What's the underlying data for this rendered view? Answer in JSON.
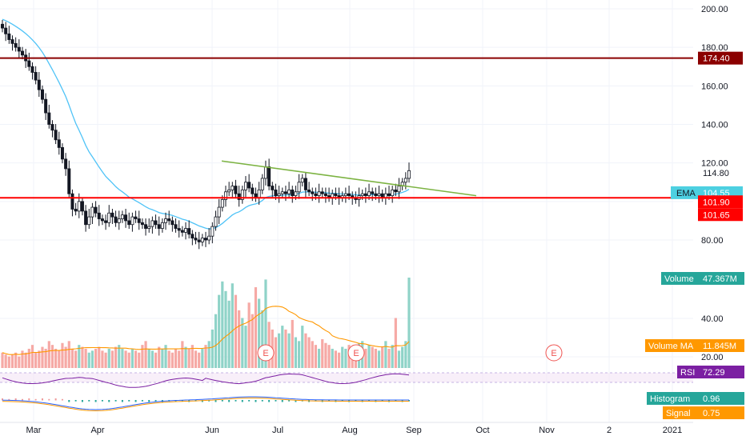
{
  "chart_data": {
    "type": "candlestick",
    "price_axis": {
      "ylim": [
        70,
        205
      ],
      "ticks": [
        "200.00",
        "180.00",
        "160.00",
        "140.00",
        "120.00",
        "80.00"
      ]
    },
    "oscillator_axis": {
      "ticks": [
        "40.00",
        "20.00"
      ]
    },
    "x_axis": {
      "labels": [
        "Mar",
        "Apr",
        "Jun",
        "Jul",
        "Aug",
        "Sep",
        "Oct",
        "Nov",
        "2",
        "2021"
      ]
    },
    "horizontal_levels": [
      {
        "label": "174.40",
        "value": 174.4,
        "color": "#8b0000"
      },
      {
        "label": "101.90",
        "value": 101.9,
        "color": "#ff0000"
      }
    ],
    "price_tags": {
      "last_price": "114.80",
      "ema": {
        "name": "EMA",
        "value": "104.55"
      },
      "lower_value": "101.65"
    },
    "trendline": {
      "color": "#7cb342",
      "from": [
        "Jun",
        121
      ],
      "to": [
        "Sep",
        103
      ]
    },
    "indicators": [
      {
        "name": "Volume",
        "value": "47.367M",
        "color": "#26a69a"
      },
      {
        "name": "Volume MA",
        "value": "11.845M",
        "color": "#ff9800"
      },
      {
        "name": "RSI",
        "value": "72.29",
        "color": "#7b1fa2"
      },
      {
        "name": "Histogram",
        "value": "0.96",
        "color": "#26a69a"
      },
      {
        "name": "Signal",
        "value": "0.75",
        "color": "#ff9800"
      }
    ],
    "events": [
      {
        "label": "E",
        "date": "Jun"
      },
      {
        "label": "E",
        "date": "Aug"
      },
      {
        "label": "E",
        "date": "Nov"
      }
    ],
    "price_series": {
      "name": "",
      "close_approx": [
        190,
        187,
        184,
        182,
        180,
        178,
        176,
        173,
        170,
        167,
        163,
        158,
        153,
        146,
        140,
        137,
        132,
        128,
        122,
        117,
        104,
        96,
        95,
        100,
        95,
        88,
        92,
        97,
        94,
        91,
        90,
        89,
        94,
        92,
        89,
        91,
        93,
        90,
        88,
        92,
        91,
        89,
        88,
        86,
        87,
        90,
        88,
        86,
        89,
        91,
        90,
        88,
        86,
        85,
        84,
        86,
        83,
        81,
        80,
        79,
        81,
        80,
        82,
        87,
        92,
        97,
        101,
        105,
        106,
        108,
        104,
        101,
        106,
        110,
        107,
        104,
        102,
        106,
        112,
        118,
        108,
        106,
        103,
        104,
        105,
        104,
        106,
        103,
        105,
        110,
        112,
        106,
        105,
        104,
        103,
        105,
        104,
        103,
        102,
        104,
        103,
        102,
        103,
        104,
        103,
        102,
        101,
        103,
        104,
        103,
        105,
        104,
        103,
        104,
        102,
        104,
        103,
        106,
        105,
        108,
        110,
        112,
        116
      ]
    },
    "volume_series": {
      "name": "Volume",
      "values_approx": [
        8,
        7,
        6,
        7,
        8,
        6,
        9,
        8,
        10,
        12,
        8,
        9,
        11,
        10,
        14,
        12,
        10,
        9,
        13,
        11,
        14,
        10,
        9,
        12,
        11,
        10,
        8,
        9,
        10,
        11,
        9,
        8,
        10,
        9,
        11,
        12,
        10,
        9,
        8,
        10,
        9,
        8,
        12,
        14,
        10,
        9,
        8,
        11,
        10,
        12,
        9,
        8,
        10,
        9,
        14,
        11,
        10,
        12,
        9,
        8,
        10,
        12,
        14,
        20,
        28,
        38,
        45,
        40,
        35,
        44,
        38,
        30,
        26,
        22,
        34,
        28,
        42,
        36,
        30,
        46,
        24,
        20,
        16,
        18,
        22,
        20,
        18,
        25,
        16,
        14,
        22,
        18,
        16,
        14,
        12,
        10,
        15,
        13,
        12,
        10,
        9,
        8,
        11,
        10,
        12,
        11,
        9,
        13,
        14,
        10,
        12,
        11,
        10,
        9,
        11,
        14,
        10,
        12,
        26,
        9,
        11,
        14,
        47
      ]
    },
    "event_markers": [
      {
        "label": "E"
      },
      {
        "label": "E"
      },
      {
        "label": "E"
      }
    ]
  }
}
